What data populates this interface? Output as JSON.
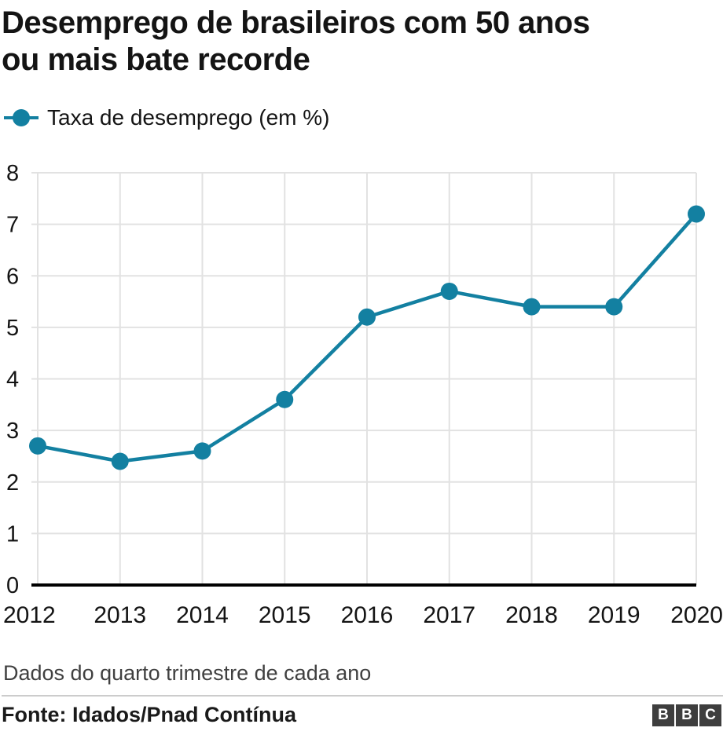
{
  "header": {
    "title": "Desemprego de brasileiros com 50 anos\nou mais bate recorde"
  },
  "legend": {
    "label": "Taxa de desemprego (em %)"
  },
  "chart_data": {
    "type": "line",
    "title": "Desemprego de brasileiros com 50 anos ou mais bate recorde",
    "categories": [
      "2012",
      "2013",
      "2014",
      "2015",
      "2016",
      "2017",
      "2018",
      "2019",
      "2020"
    ],
    "series": [
      {
        "name": "Taxa de desemprego (em %)",
        "values": [
          2.7,
          2.4,
          2.6,
          3.6,
          5.2,
          5.7,
          5.4,
          5.4,
          7.2
        ]
      }
    ],
    "xlabel": "",
    "ylabel": "",
    "ylim": [
      0,
      8
    ],
    "yticks": [
      0,
      1,
      2,
      3,
      4,
      5,
      6,
      7,
      8
    ],
    "grid": true,
    "legend_position": "top-left",
    "line_color": "#1380A1",
    "marker_radius": 11
  },
  "footer": {
    "note": "Dados do quarto trimestre de cada ano",
    "source": "Fonte: Idados/Pnad Contínua",
    "logo": [
      "B",
      "B",
      "C"
    ]
  },
  "colors": {
    "accent": "#1380A1",
    "grid": "#e2e2e2",
    "axis": "#000000",
    "text": "#141414",
    "muted": "#404040",
    "logo_bg": "#3e3e3e"
  }
}
